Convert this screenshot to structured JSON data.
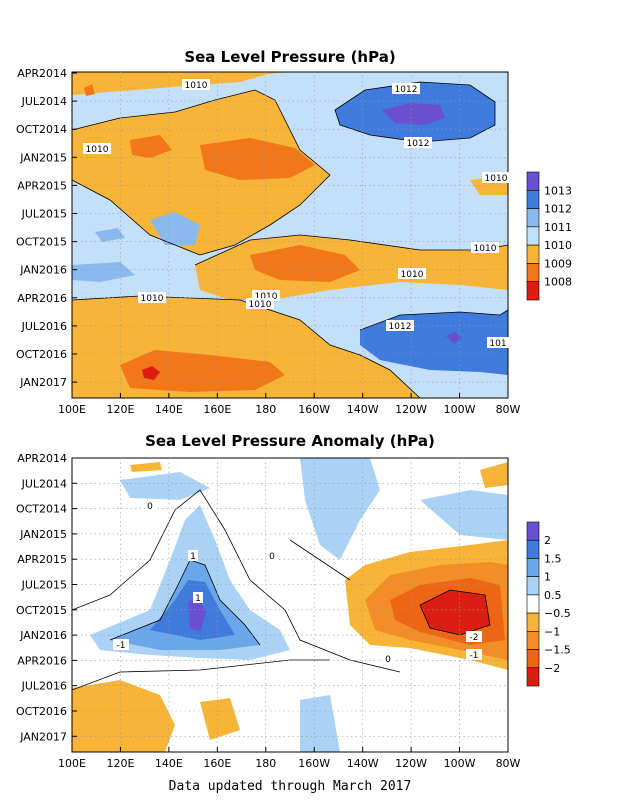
{
  "chart_data": [
    {
      "type": "heatmap",
      "title": "Sea Level Pressure (hPa)",
      "x_tick_labels": [
        "100E",
        "120E",
        "140E",
        "160E",
        "180",
        "160W",
        "140W",
        "120W",
        "100W",
        "80W"
      ],
      "y_tick_labels": [
        "APR2014",
        "JUL2014",
        "OCT2014",
        "JAN2015",
        "APR2015",
        "JUL2015",
        "OCT2015",
        "JAN2016",
        "APR2016",
        "JUL2016",
        "OCT2016",
        "JAN2017"
      ],
      "colorbar": {
        "labels": [
          "1013",
          "1012",
          "1011",
          "1010",
          "1009",
          "1008"
        ],
        "colors": [
          "#6a4fd0",
          "#3e7bdc",
          "#8ab9ef",
          "#c4e0f8",
          "#f7b437",
          "#f27719",
          "#dc1e12"
        ]
      },
      "contour_labels": [
        {
          "text": "1010"
        },
        {
          "text": "1012"
        },
        {
          "text": "1012"
        },
        {
          "text": "1010"
        },
        {
          "text": "1010"
        },
        {
          "text": "1010"
        },
        {
          "text": "1010"
        },
        {
          "text": "1010"
        },
        {
          "text": "1010"
        },
        {
          "text": "1010"
        },
        {
          "text": "1012"
        },
        {
          "text": "101"
        }
      ],
      "features": [
        {
          "label": "high pressure",
          "value": "1013",
          "lon": "120W",
          "time": "JUL2014"
        },
        {
          "label": "high pressure",
          "value": "1013",
          "lon": "100W",
          "time": "OCT2016"
        },
        {
          "label": "low pressure",
          "value": "1008",
          "lon": "130E",
          "time": "JAN2017"
        }
      ]
    },
    {
      "type": "heatmap",
      "title": "Sea Level Pressure Anomaly (hPa)",
      "x_tick_labels": [
        "100E",
        "120E",
        "140E",
        "160E",
        "180",
        "160W",
        "140W",
        "120W",
        "100W",
        "80W"
      ],
      "y_tick_labels": [
        "APR2014",
        "JUL2014",
        "OCT2014",
        "JAN2015",
        "APR2015",
        "JUL2015",
        "OCT2015",
        "JAN2016",
        "APR2016",
        "JUL2016",
        "OCT2016",
        "JAN2017"
      ],
      "colorbar": {
        "labels": [
          "2",
          "1.5",
          "1",
          "0.5",
          "−0.5",
          "−1",
          "−1.5",
          "−2"
        ],
        "colors": [
          "#6a4fd0",
          "#3e7bdc",
          "#6aa6ea",
          "#a9d2f5",
          "#ffffff",
          "#f7b437",
          "#f28d28",
          "#ee6513",
          "#dc1e12"
        ]
      },
      "contour_labels": [
        {
          "text": "0"
        },
        {
          "text": "1"
        },
        {
          "text": "0"
        },
        {
          "text": "1"
        },
        {
          "text": "-1"
        },
        {
          "text": "0"
        },
        {
          "text": "-2"
        },
        {
          "text": "-1"
        }
      ],
      "features": [
        {
          "label": "positive anomaly",
          "value": "2",
          "lon": "150E",
          "time": "OCT2015"
        },
        {
          "label": "negative anomaly",
          "value": "-2",
          "lon": "105W",
          "time": "OCT2015"
        }
      ]
    }
  ],
  "footer": "Data updated through March 2017"
}
